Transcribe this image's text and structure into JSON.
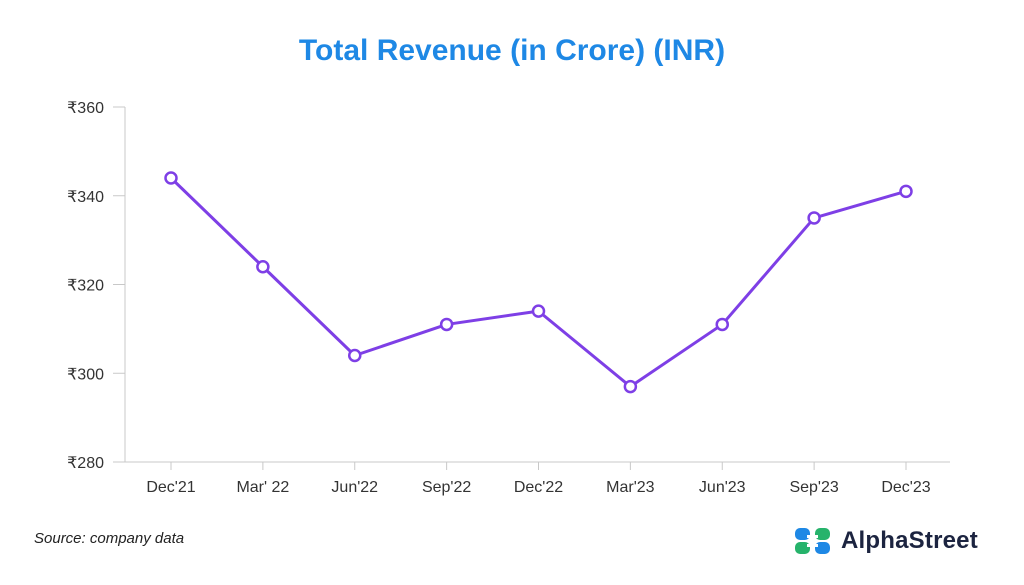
{
  "colors": {
    "title": "#1e88e5",
    "line": "#7e3fe6",
    "axis": "#c8c8c8",
    "logo_blue": "#1e88e5",
    "logo_green": "#26b36b"
  },
  "source_text": "Source: company data",
  "brand_name": "AlphaStreet",
  "logo_icon": "alphastreet-logo-icon",
  "chart_data": {
    "type": "line",
    "title": "Total Revenue (in Crore) (INR)",
    "xlabel": "",
    "ylabel": "",
    "categories": [
      "Dec'21",
      "Mar' 22",
      "Jun'22",
      "Sep'22",
      "Dec'22",
      "Mar'23",
      "Jun'23",
      "Sep'23",
      "Dec'23"
    ],
    "series": [
      {
        "name": "Total Revenue",
        "values": [
          344,
          324,
          304,
          311,
          314,
          297,
          311,
          335,
          341
        ]
      }
    ],
    "ylim": [
      280,
      360
    ],
    "yticks": [
      280,
      300,
      320,
      340,
      360
    ],
    "ytick_labels": [
      "₹280",
      "₹300",
      "₹320",
      "₹340",
      "₹360"
    ],
    "grid": false,
    "markers": "hollow-circle"
  }
}
